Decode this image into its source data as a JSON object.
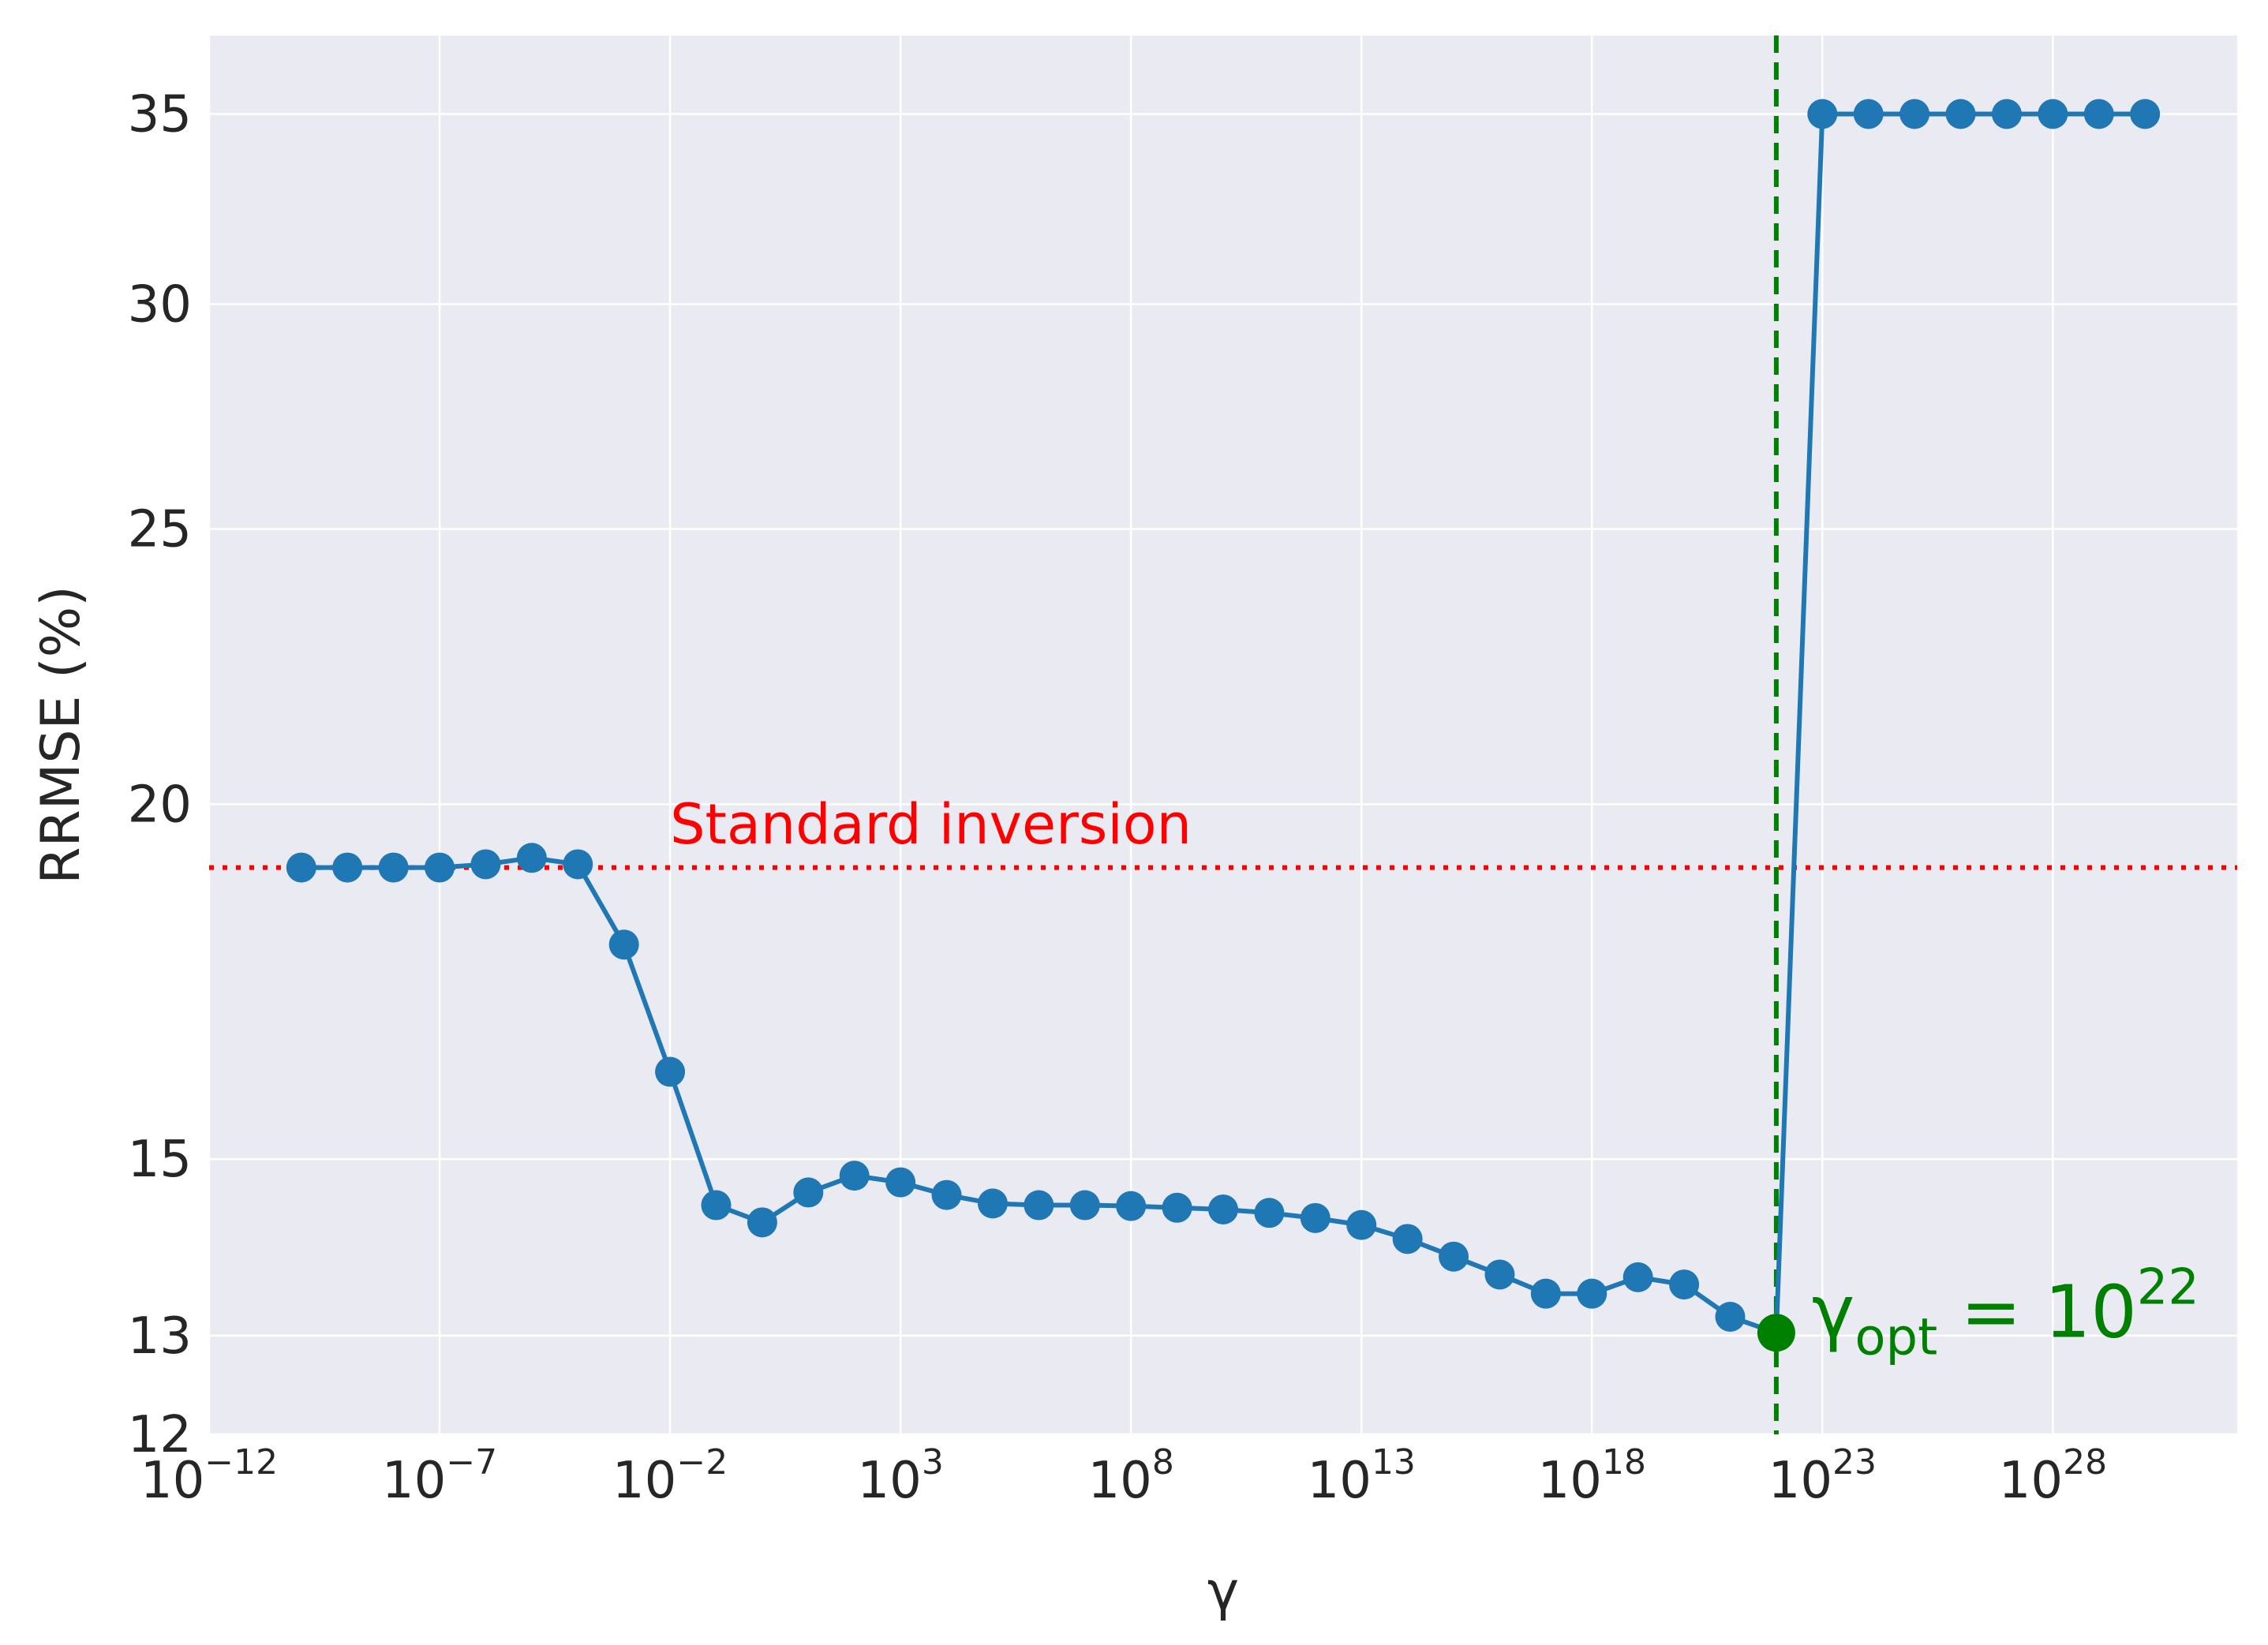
{
  "chart_data": {
    "type": "line",
    "title": "",
    "xlabel": "γ",
    "ylabel": "RRMSE (%)",
    "x_scale": "log",
    "y_scale": "log",
    "xlim": [
      1e-12,
      1e+32
    ],
    "ylim": [
      12,
      37.3
    ],
    "grid": true,
    "x_ticks": [
      {
        "base": "10",
        "exp": "−12",
        "value": 1e-12
      },
      {
        "base": "10",
        "exp": "−7",
        "value": 1e-07
      },
      {
        "base": "10",
        "exp": "−2",
        "value": 0.01
      },
      {
        "base": "10",
        "exp": "3",
        "value": 1000.0
      },
      {
        "base": "10",
        "exp": "8",
        "value": 100000000.0
      },
      {
        "base": "10",
        "exp": "13",
        "value": 10000000000000.0
      },
      {
        "base": "10",
        "exp": "18",
        "value": 1e+18
      },
      {
        "base": "10",
        "exp": "23",
        "value": 1e+23
      },
      {
        "base": "10",
        "exp": "28",
        "value": 1e+28
      }
    ],
    "y_ticks": [
      {
        "label": "12",
        "value": 12
      },
      {
        "label": "13",
        "value": 13
      },
      {
        "label": "15",
        "value": 15
      },
      {
        "label": "20",
        "value": 20
      },
      {
        "label": "25",
        "value": 25
      },
      {
        "label": "30",
        "value": 30
      },
      {
        "label": "35",
        "value": 35
      }
    ],
    "series": [
      {
        "color": "#1f77b4",
        "points": [
          {
            "x": 1e-10,
            "y": 19.0
          },
          {
            "x": 1e-09,
            "y": 19.0
          },
          {
            "x": 1e-08,
            "y": 19.0
          },
          {
            "x": 1e-07,
            "y": 19.0
          },
          {
            "x": 1e-06,
            "y": 19.05
          },
          {
            "x": 1e-05,
            "y": 19.15
          },
          {
            "x": 0.0001,
            "y": 19.05
          },
          {
            "x": 0.001,
            "y": 17.85
          },
          {
            "x": 0.01,
            "y": 16.1
          },
          {
            "x": 0.1,
            "y": 14.45
          },
          {
            "x": 1.0,
            "y": 14.25
          },
          {
            "x": 10.0,
            "y": 14.6
          },
          {
            "x": 100.0,
            "y": 14.8
          },
          {
            "x": 1000.0,
            "y": 14.72
          },
          {
            "x": 10000.0,
            "y": 14.57
          },
          {
            "x": 100000.0,
            "y": 14.47
          },
          {
            "x": 1000000.0,
            "y": 14.45
          },
          {
            "x": 10000000.0,
            "y": 14.45
          },
          {
            "x": 100000000.0,
            "y": 14.44
          },
          {
            "x": 1000000000.0,
            "y": 14.42
          },
          {
            "x": 10000000000.0,
            "y": 14.4
          },
          {
            "x": 100000000000.0,
            "y": 14.36
          },
          {
            "x": 1000000000000.0,
            "y": 14.3
          },
          {
            "x": 10000000000000.0,
            "y": 14.22
          },
          {
            "x": 100000000000000.0,
            "y": 14.06
          },
          {
            "x": 1000000000000000.0,
            "y": 13.86
          },
          {
            "x": 1e+16,
            "y": 13.66
          },
          {
            "x": 1e+17,
            "y": 13.45
          },
          {
            "x": 1e+18,
            "y": 13.45
          },
          {
            "x": 1e+19,
            "y": 13.63
          },
          {
            "x": 1e+20,
            "y": 13.55
          },
          {
            "x": 1e+21,
            "y": 13.2
          },
          {
            "x": 1e+22,
            "y": 13.03
          },
          {
            "x": 1e+23,
            "y": 35.0
          },
          {
            "x": 1e+24,
            "y": 35.0
          },
          {
            "x": 1e+25,
            "y": 35.0
          },
          {
            "x": 1e+26,
            "y": 35.0
          },
          {
            "x": 1e+27,
            "y": 35.0
          },
          {
            "x": 1e+28,
            "y": 35.0
          },
          {
            "x": 1e+29,
            "y": 35.0
          },
          {
            "x": 1e+30,
            "y": 35.0
          }
        ]
      }
    ],
    "reference_lines": [
      {
        "orientation": "horizontal",
        "value": 19.0,
        "style": "dotted",
        "color": "#ff0000"
      },
      {
        "orientation": "vertical",
        "value": 1e+22,
        "style": "dashed",
        "color": "#008000"
      }
    ],
    "highlight_point": {
      "x": 1e+22,
      "y": 13.03,
      "color": "#008000"
    },
    "annotations": {
      "standard": {
        "text": "Standard inversion",
        "x": 0.01,
        "y": 19.55,
        "color": "#ff0000"
      },
      "optimum": {
        "gamma": "γ",
        "sub": "opt",
        "eq": " = 10",
        "sup": "22",
        "x": 1e+22,
        "y": 13.03,
        "color": "#008000"
      }
    },
    "colors": {
      "plot_bg": "#eaeaf2",
      "grid": "#ffffff",
      "text": "#262626"
    }
  }
}
